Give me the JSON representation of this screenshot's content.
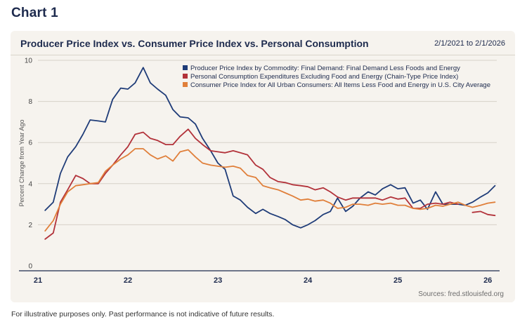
{
  "page": {
    "heading": "Chart 1",
    "footer": "For illustrative purposes only. Past performance is not indicative of future results."
  },
  "card": {
    "title": "Producer Price Index vs. Consumer Price Index vs. Personal Consumption",
    "date_range": "2/1/2021 to 2/1/2026",
    "source": "Sources: fred.stlouisfed.org"
  },
  "colors": {
    "ppi": "#1f3c78",
    "pce": "#b2323a",
    "cpi": "#e07f3a",
    "grid": "#d6d1c8",
    "axis": "#1d2a4d"
  },
  "chart_data": {
    "type": "line",
    "ylabel": "Percent Change from Year Ago",
    "xlabel": "",
    "ylim": [
      0,
      10
    ],
    "xlim": [
      2021.0,
      2026.1
    ],
    "y_ticks": [
      0,
      2,
      4,
      6,
      8,
      10
    ],
    "x_ticks": [
      {
        "value": 2021,
        "label": "21"
      },
      {
        "value": 2022,
        "label": "22"
      },
      {
        "value": 2023,
        "label": "23"
      },
      {
        "value": 2024,
        "label": "24"
      },
      {
        "value": 2025,
        "label": "25"
      },
      {
        "value": 2026,
        "label": "26"
      }
    ],
    "grid": true,
    "legend_position": "top-right",
    "series": [
      {
        "key": "ppi",
        "name": "Producer Price Index by Commodity: Final Demand: Final Demand Less Foods and Energy",
        "x": [
          2021.08,
          2021.17,
          2021.25,
          2021.33,
          2021.42,
          2021.5,
          2021.58,
          2021.67,
          2021.75,
          2021.83,
          2021.92,
          2022.0,
          2022.08,
          2022.17,
          2022.25,
          2022.33,
          2022.42,
          2022.5,
          2022.58,
          2022.67,
          2022.75,
          2022.83,
          2022.92,
          2023.0,
          2023.08,
          2023.17,
          2023.25,
          2023.33,
          2023.42,
          2023.5,
          2023.58,
          2023.67,
          2023.75,
          2023.83,
          2023.92,
          2024.0,
          2024.08,
          2024.17,
          2024.25,
          2024.33,
          2024.42,
          2024.5,
          2024.58,
          2024.67,
          2024.75,
          2024.83,
          2024.92,
          2025.0,
          2025.08,
          2025.17,
          2025.25,
          2025.33,
          2025.42,
          2025.5,
          2025.58,
          2025.67,
          2025.75,
          2025.83,
          2025.92,
          2026.0,
          2026.08
        ],
        "values": [
          2.7,
          3.1,
          4.5,
          5.3,
          5.8,
          6.4,
          7.1,
          7.05,
          7.0,
          8.1,
          8.65,
          8.6,
          8.9,
          9.65,
          8.9,
          8.6,
          8.3,
          7.6,
          7.25,
          7.2,
          6.9,
          6.2,
          5.6,
          5.0,
          4.7,
          3.4,
          3.2,
          2.85,
          2.55,
          2.75,
          2.55,
          2.4,
          2.25,
          2.0,
          1.85,
          2.0,
          2.2,
          2.5,
          2.65,
          3.3,
          2.65,
          2.9,
          3.3,
          3.6,
          3.45,
          3.75,
          3.95,
          3.75,
          3.8,
          3.05,
          3.2,
          2.75,
          3.6,
          3.0,
          3.0,
          3.0,
          2.95,
          3.1,
          3.35,
          3.55,
          3.9
        ]
      },
      {
        "key": "pce",
        "name": "Personal Consumption Expenditures Excluding Food and Energy (Chain-Type Price Index)",
        "x": [
          2021.08,
          2021.17,
          2021.25,
          2021.33,
          2021.42,
          2021.5,
          2021.58,
          2021.67,
          2021.75,
          2021.83,
          2021.92,
          2022.0,
          2022.08,
          2022.17,
          2022.25,
          2022.33,
          2022.42,
          2022.5,
          2022.58,
          2022.67,
          2022.75,
          2022.83,
          2022.92,
          2023.0,
          2023.08,
          2023.17,
          2023.25,
          2023.33,
          2023.42,
          2023.5,
          2023.58,
          2023.67,
          2023.75,
          2023.83,
          2023.92,
          2024.0,
          2024.08,
          2024.17,
          2024.25,
          2024.33,
          2024.42,
          2024.5,
          2024.58,
          2024.67,
          2024.75,
          2024.83,
          2024.92,
          2025.0,
          2025.08,
          2025.17,
          2025.25,
          2025.33,
          2025.42,
          2025.5,
          2025.58,
          2025.67,
          null,
          2025.83,
          2025.92,
          2026.0,
          2026.08
        ],
        "values": [
          1.3,
          1.6,
          3.1,
          3.7,
          4.4,
          4.25,
          4.0,
          4.0,
          4.5,
          4.9,
          5.4,
          5.8,
          6.4,
          6.5,
          6.2,
          6.1,
          5.9,
          5.9,
          6.3,
          6.65,
          6.2,
          5.9,
          5.6,
          5.55,
          5.5,
          5.6,
          5.5,
          5.4,
          4.9,
          4.7,
          4.3,
          4.1,
          4.05,
          3.95,
          3.9,
          3.85,
          3.7,
          3.8,
          3.6,
          3.35,
          3.2,
          3.3,
          3.3,
          3.3,
          3.3,
          3.2,
          3.35,
          3.25,
          3.3,
          2.8,
          2.8,
          3.0,
          3.05,
          3.0,
          3.1,
          3.0,
          null,
          2.6,
          2.65,
          2.5,
          2.45
        ]
      },
      {
        "key": "cpi",
        "name": "Consumer Price Index for All Urban Consumers: All Items Less Food and Energy in U.S. City Average",
        "x": [
          2021.08,
          2021.17,
          2021.25,
          2021.33,
          2021.42,
          2021.5,
          2021.58,
          2021.67,
          2021.75,
          2021.83,
          2021.92,
          2022.0,
          2022.08,
          2022.17,
          2022.25,
          2022.33,
          2022.42,
          2022.5,
          2022.58,
          2022.67,
          2022.75,
          2022.83,
          2022.92,
          2023.0,
          2023.08,
          2023.17,
          2023.25,
          2023.33,
          2023.42,
          2023.5,
          2023.58,
          2023.67,
          2023.75,
          2023.83,
          2023.92,
          2024.0,
          2024.08,
          2024.17,
          2024.25,
          2024.33,
          2024.42,
          2024.5,
          2024.58,
          2024.67,
          2024.75,
          2024.83,
          2024.92,
          2025.0,
          2025.08,
          2025.17,
          2025.25,
          2025.33,
          2025.42,
          2025.5,
          2025.58,
          2025.67,
          2025.75,
          2025.83,
          2025.92,
          2026.0,
          2026.08
        ],
        "values": [
          1.7,
          2.2,
          3.0,
          3.6,
          3.9,
          3.95,
          4.0,
          4.05,
          4.6,
          4.9,
          5.2,
          5.4,
          5.7,
          5.7,
          5.4,
          5.2,
          5.35,
          5.1,
          5.55,
          5.65,
          5.3,
          5.0,
          4.9,
          4.85,
          4.8,
          4.85,
          4.75,
          4.4,
          4.3,
          3.9,
          3.8,
          3.7,
          3.55,
          3.4,
          3.2,
          3.25,
          3.15,
          3.2,
          3.05,
          2.8,
          2.85,
          3.0,
          3.0,
          2.95,
          3.05,
          3.0,
          3.05,
          2.95,
          2.95,
          2.8,
          2.75,
          2.8,
          2.95,
          2.9,
          3.0,
          3.1,
          2.95,
          2.85,
          2.95,
          3.05,
          3.1
        ]
      }
    ]
  }
}
